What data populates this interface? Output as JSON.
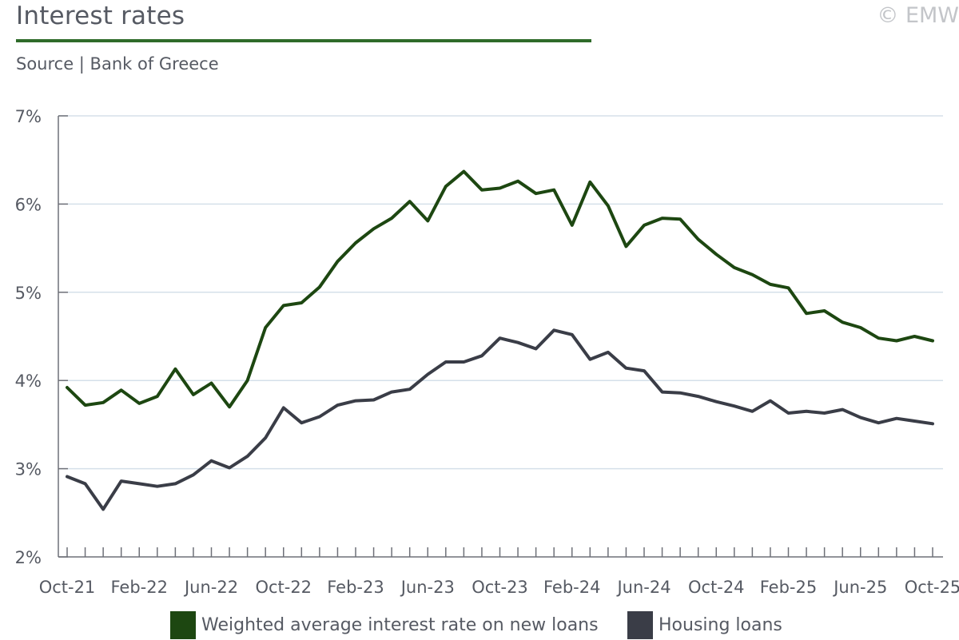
{
  "header": {
    "title": "Interest rates",
    "copyright": "© EMW",
    "source": "Source | Bank of Greece"
  },
  "colors": {
    "series_new_loans": "#1d4711",
    "series_housing": "#3a3d47",
    "title_rule": "#2f6b2a",
    "grid": "#d5e0ea",
    "axis": "#6e7078",
    "text": "#565a63"
  },
  "chart_data": {
    "type": "line",
    "title": "",
    "xlabel": "",
    "ylabel": "",
    "ylim": [
      2,
      7
    ],
    "y_ticks": [
      "2%",
      "3%",
      "4%",
      "5%",
      "6%",
      "7%"
    ],
    "x_tick_labels": [
      "Oct-21",
      "Feb-22",
      "Jun-22",
      "Oct-22",
      "Feb-23",
      "Jun-23",
      "Oct-23",
      "Feb-24",
      "Jun-24",
      "Oct-24",
      "Feb-25",
      "Jun-25",
      "Oct-25"
    ],
    "x": [
      "Oct-21",
      "Nov-21",
      "Dec-21",
      "Jan-22",
      "Feb-22",
      "Mar-22",
      "Apr-22",
      "May-22",
      "Jun-22",
      "Jul-22",
      "Aug-22",
      "Sep-22",
      "Oct-22",
      "Nov-22",
      "Dec-22",
      "Jan-23",
      "Feb-23",
      "Mar-23",
      "Apr-23",
      "May-23",
      "Jun-23",
      "Jul-23",
      "Aug-23",
      "Sep-23",
      "Oct-23",
      "Nov-23",
      "Dec-23",
      "Jan-24",
      "Feb-24",
      "Mar-24",
      "Apr-24",
      "May-24",
      "Jun-24",
      "Jul-24",
      "Aug-24",
      "Sep-24",
      "Oct-24",
      "Nov-24",
      "Dec-24",
      "Jan-25",
      "Feb-25",
      "Mar-25",
      "Apr-25",
      "May-25",
      "Jun-25",
      "Jul-25",
      "Aug-25",
      "Sep-25",
      "Oct-25"
    ],
    "grid": true,
    "legend_position": "bottom",
    "series": [
      {
        "name": "Weighted average interest rate on new loans",
        "values": [
          3.92,
          3.72,
          3.75,
          3.89,
          3.74,
          3.82,
          4.13,
          3.84,
          3.97,
          3.7,
          4.0,
          4.6,
          4.85,
          4.88,
          5.06,
          5.35,
          5.56,
          5.72,
          5.84,
          6.03,
          5.81,
          6.2,
          6.37,
          6.16,
          6.18,
          6.26,
          6.12,
          6.16,
          5.76,
          6.25,
          5.98,
          5.52,
          5.76,
          5.84,
          5.83,
          5.6,
          5.43,
          5.28,
          5.2,
          5.09,
          5.05,
          4.76,
          4.79,
          4.66,
          4.6,
          4.48,
          4.45,
          4.5,
          4.45
        ]
      },
      {
        "name": "Housing loans",
        "values": [
          2.91,
          2.83,
          2.54,
          2.86,
          2.83,
          2.8,
          2.83,
          2.93,
          3.09,
          3.01,
          3.14,
          3.35,
          3.69,
          3.52,
          3.59,
          3.72,
          3.77,
          3.78,
          3.87,
          3.9,
          4.07,
          4.21,
          4.21,
          4.28,
          4.48,
          4.43,
          4.36,
          4.57,
          4.52,
          4.24,
          4.32,
          4.14,
          4.11,
          3.87,
          3.86,
          3.82,
          3.76,
          3.71,
          3.65,
          3.77,
          3.63,
          3.65,
          3.63,
          3.67,
          3.58,
          3.52,
          3.57,
          3.54,
          3.51
        ]
      }
    ]
  }
}
